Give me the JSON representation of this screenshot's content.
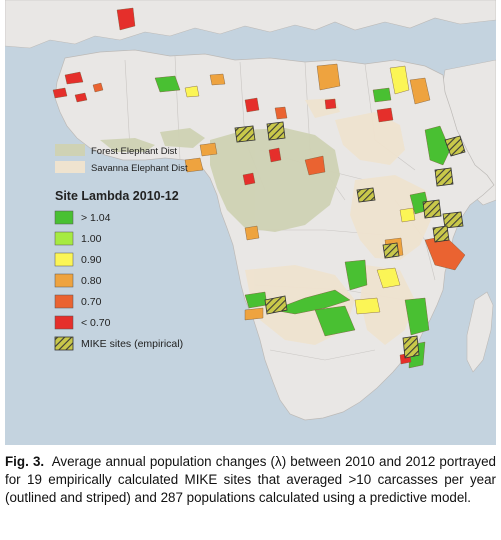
{
  "legend": {
    "distribution_items": [
      {
        "label": "Forest Elephant Dist",
        "color": "#cfd2b4"
      },
      {
        "label": "Savanna Elephant Dist",
        "color": "#efe3cf"
      }
    ],
    "lambda_title": "Site Lambda 2010-12",
    "lambda_items": [
      {
        "label": "> 1.04",
        "color": "#49c032"
      },
      {
        "label": "1.00",
        "color": "#a6ea41"
      },
      {
        "label": "0.90",
        "color": "#fbf556"
      },
      {
        "label": "0.80",
        "color": "#eea33f"
      },
      {
        "label": "0.70",
        "color": "#ea6331"
      },
      {
        "label": "< 0.70",
        "color": "#e52f2b"
      }
    ],
    "mike_label": "MIKE sites (empirical)"
  },
  "colors": {
    "ocean": "#c4d3df",
    "land": "#e9e7e5",
    "border": "#bdbab7",
    "forest_dist": "#cfd2b4",
    "savanna_dist": "#efe3cf"
  },
  "caption": {
    "label": "Fig. 3.",
    "text": "Average annual population changes (λ) between 2010 and 2012 portrayed for 19 empirically calculated MIKE sites that averaged >10 carcasses per year (outlined and striped) and 287 populations calculated using a predictive model."
  }
}
